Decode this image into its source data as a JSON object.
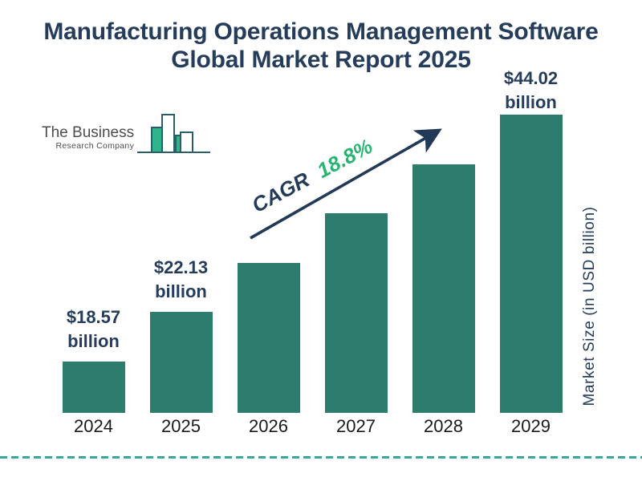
{
  "title": {
    "line1": "Manufacturing Operations Management Software",
    "line2": "Global Market Report 2025"
  },
  "logo": {
    "name": "The Business",
    "subname": "Research Company"
  },
  "cagr": {
    "prefix": "CAGR",
    "value": "18.8%"
  },
  "y_axis_label": "Market Size (in USD billion)",
  "chart_data": {
    "type": "bar",
    "title": "Manufacturing Operations Management Software Global Market Report 2025",
    "categories": [
      "2024",
      "2025",
      "2026",
      "2027",
      "2028",
      "2029"
    ],
    "values": [
      18.57,
      22.13,
      null,
      null,
      null,
      44.02
    ],
    "unit": "USD billion",
    "ylabel": "Market Size (in USD billion)",
    "cagr": "18.8%",
    "legend": false,
    "grid": false,
    "annotations": [
      {
        "index": 0,
        "line1": "$18.57",
        "line2": "billion"
      },
      {
        "index": 1,
        "line1": "$22.13",
        "line2": "billion"
      },
      {
        "index": 5,
        "line1": "$44.02",
        "line2": "billion"
      }
    ]
  },
  "colors": {
    "bar_fill": "#2D7D6E",
    "title_navy": "#253C5B",
    "accent_green": "#2BB573",
    "arrow_navy": "#223A57",
    "dashed_line_teal": "#3FA396",
    "logo_outline_teal": "#2B5F68",
    "logo_fill_green": "#2FB48C",
    "year_label": "#1A1A1A"
  }
}
